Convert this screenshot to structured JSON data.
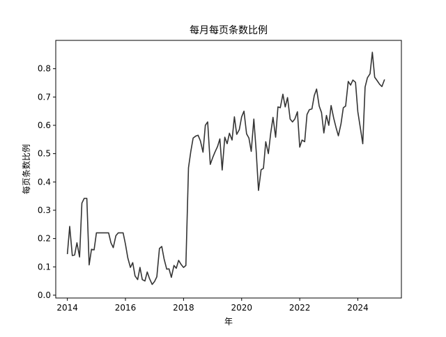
{
  "chart_data": {
    "type": "line",
    "title": "每月每页条数比例",
    "xlabel": "年",
    "ylabel": "每页条数比例",
    "xlim": [
      2013.6,
      2025.5
    ],
    "ylim": [
      -0.01,
      0.9
    ],
    "xticks": [
      2014,
      2016,
      2018,
      2020,
      2022,
      2024
    ],
    "yticks": [
      0.0,
      0.1,
      0.2,
      0.3,
      0.4,
      0.5,
      0.6,
      0.7,
      0.8
    ],
    "ytick_labels": [
      "0.0",
      "0.1",
      "0.2",
      "0.3",
      "0.4",
      "0.5",
      "0.6",
      "0.7",
      "0.8"
    ],
    "grid": false,
    "line_color": "#333333",
    "series": [
      {
        "x": [
          2014.0,
          2014.08,
          2014.17,
          2014.25,
          2014.33,
          2014.42,
          2014.5,
          2014.58,
          2014.67,
          2014.75,
          2014.83,
          2014.92,
          2015.0,
          2015.08,
          2015.17,
          2015.25,
          2015.33,
          2015.42,
          2015.5,
          2015.58,
          2015.67,
          2015.75,
          2015.83,
          2015.92,
          2016.0,
          2016.08,
          2016.17,
          2016.25,
          2016.33,
          2016.42,
          2016.5,
          2016.58,
          2016.67,
          2016.75,
          2016.83,
          2016.92,
          2017.0,
          2017.08,
          2017.17,
          2017.25,
          2017.33,
          2017.42,
          2017.5,
          2017.58,
          2017.67,
          2017.75,
          2017.83,
          2017.92,
          2018.0,
          2018.08,
          2018.17,
          2018.25,
          2018.33,
          2018.42,
          2018.5,
          2018.58,
          2018.67,
          2018.75,
          2018.83,
          2018.92,
          2019.0,
          2019.08,
          2019.17,
          2019.25,
          2019.33,
          2019.42,
          2019.5,
          2019.58,
          2019.67,
          2019.75,
          2019.83,
          2019.92,
          2020.0,
          2020.08,
          2020.17,
          2020.25,
          2020.33,
          2020.42,
          2020.5,
          2020.58,
          2020.67,
          2020.75,
          2020.83,
          2020.92,
          2021.0,
          2021.08,
          2021.17,
          2021.25,
          2021.33,
          2021.42,
          2021.5,
          2021.58,
          2021.67,
          2021.75,
          2021.83,
          2021.92,
          2022.0,
          2022.08,
          2022.17,
          2022.25,
          2022.33,
          2022.42,
          2022.5,
          2022.58,
          2022.67,
          2022.75,
          2022.83,
          2022.92,
          2023.0,
          2023.08,
          2023.17,
          2023.25,
          2023.33,
          2023.42,
          2023.5,
          2023.58,
          2023.67,
          2023.75,
          2023.83,
          2023.92,
          2024.0,
          2024.08,
          2024.17,
          2024.25,
          2024.33,
          2024.42,
          2024.5,
          2024.58,
          2024.67,
          2024.75,
          2024.83,
          2024.92
        ],
        "values": [
          0.145,
          0.243,
          0.14,
          0.142,
          0.185,
          0.135,
          0.325,
          0.342,
          0.342,
          0.107,
          0.162,
          0.16,
          0.22,
          0.22,
          0.22,
          0.22,
          0.22,
          0.22,
          0.185,
          0.168,
          0.21,
          0.22,
          0.22,
          0.22,
          0.18,
          0.132,
          0.098,
          0.115,
          0.068,
          0.055,
          0.098,
          0.055,
          0.05,
          0.082,
          0.058,
          0.038,
          0.048,
          0.065,
          0.165,
          0.172,
          0.128,
          0.092,
          0.093,
          0.063,
          0.105,
          0.095,
          0.123,
          0.108,
          0.098,
          0.105,
          0.45,
          0.508,
          0.555,
          0.562,
          0.565,
          0.545,
          0.505,
          0.6,
          0.612,
          0.462,
          0.485,
          0.505,
          0.525,
          0.552,
          0.442,
          0.558,
          0.535,
          0.572,
          0.548,
          0.63,
          0.568,
          0.585,
          0.63,
          0.65,
          0.57,
          0.555,
          0.508,
          0.622,
          0.51,
          0.37,
          0.443,
          0.448,
          0.542,
          0.5,
          0.572,
          0.628,
          0.558,
          0.665,
          0.662,
          0.71,
          0.665,
          0.698,
          0.622,
          0.612,
          0.622,
          0.648,
          0.523,
          0.548,
          0.542,
          0.638,
          0.655,
          0.658,
          0.705,
          0.728,
          0.668,
          0.645,
          0.573,
          0.635,
          0.6,
          0.67,
          0.625,
          0.592,
          0.563,
          0.605,
          0.662,
          0.668,
          0.755,
          0.742,
          0.76,
          0.752,
          0.648,
          0.595,
          0.535,
          0.735,
          0.768,
          0.782,
          0.858,
          0.77,
          0.757,
          0.745,
          0.737,
          0.762
        ]
      }
    ]
  }
}
